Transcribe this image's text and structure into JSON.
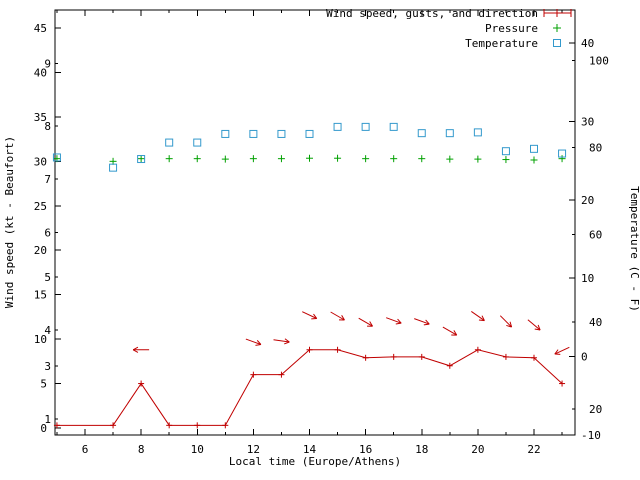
{
  "chart_data": {
    "type": "line",
    "xlabel": "Local time (Europe/Athens)",
    "ylabel_left": "Wind speed (kt - Beaufort)",
    "ylabel_right": "Temperature (C - F)",
    "x_hours_range": [
      5,
      23.4
    ],
    "x_major_ticks": [
      6,
      8,
      10,
      12,
      14,
      16,
      18,
      20,
      22
    ],
    "x_minor_ticks": [
      5,
      7,
      9,
      11,
      13,
      15,
      17,
      19,
      21,
      23
    ],
    "grid": "off",
    "legend_position": "top-right-inside",
    "left_axis": {
      "kt_ticks": [
        0,
        5,
        10,
        15,
        20,
        25,
        30,
        35,
        40,
        45
      ],
      "kt_range": [
        -0.8,
        47
      ],
      "beaufort_labels": [
        {
          "label": "1",
          "kt": 1
        },
        {
          "label": "3",
          "kt": 7
        },
        {
          "label": "4",
          "kt": 11
        },
        {
          "label": "5",
          "kt": 17
        },
        {
          "label": "6",
          "kt": 22
        },
        {
          "label": "7",
          "kt": 28
        },
        {
          "label": "8",
          "kt": 34
        },
        {
          "label": "9",
          "kt": 41
        }
      ]
    },
    "right_axis": {
      "celsius_ticks": [
        -10,
        0,
        10,
        20,
        30,
        40
      ],
      "celsius_range": [
        -10,
        44.2
      ],
      "fahrenheit_ticks": [
        20,
        40,
        60,
        80,
        100
      ]
    },
    "legend": [
      {
        "label": "Wind speed, gusts, and direction",
        "symbol": "errorbar-line",
        "color": "#c00000",
        "label_color": "#8b0000"
      },
      {
        "label": "Pressure",
        "symbol": "plus",
        "color": "#00a000",
        "label_color": "#000000"
      },
      {
        "label": "Temperature",
        "symbol": "open-square",
        "color": "#3399cc",
        "label_color": "#000000"
      }
    ],
    "series": {
      "wind_speed": {
        "name": "Wind speed (kt)",
        "color": "#c00000",
        "points": [
          [
            5,
            0.3
          ],
          [
            7,
            0.3
          ],
          [
            8,
            5
          ],
          [
            9,
            0.3
          ],
          [
            10,
            0.3
          ],
          [
            11,
            0.3
          ],
          [
            12,
            6
          ],
          [
            13,
            6
          ],
          [
            14,
            8.8
          ],
          [
            15,
            8.8
          ],
          [
            16,
            7.9
          ],
          [
            17,
            8
          ],
          [
            18,
            8
          ],
          [
            19,
            7
          ],
          [
            20,
            8.8
          ],
          [
            21,
            8
          ],
          [
            22,
            7.9
          ],
          [
            23,
            5
          ]
        ]
      },
      "wind_gust_arrows": {
        "name": "Gusts and direction",
        "color": "#c00000",
        "points": [
          {
            "t": 8,
            "kt": 8.8,
            "angle_deg": 180
          },
          {
            "t": 12,
            "kt": 9.7,
            "angle_deg": 20
          },
          {
            "t": 13,
            "kt": 9.8,
            "angle_deg": 8
          },
          {
            "t": 14,
            "kt": 12.7,
            "angle_deg": 25
          },
          {
            "t": 15,
            "kt": 12.6,
            "angle_deg": 30
          },
          {
            "t": 16,
            "kt": 11.9,
            "angle_deg": 30
          },
          {
            "t": 17,
            "kt": 12.1,
            "angle_deg": 20
          },
          {
            "t": 18,
            "kt": 12.0,
            "angle_deg": 20
          },
          {
            "t": 19,
            "kt": 10.9,
            "angle_deg": 30
          },
          {
            "t": 20,
            "kt": 12.6,
            "angle_deg": 35
          },
          {
            "t": 21,
            "kt": 12.0,
            "angle_deg": 45
          },
          {
            "t": 22,
            "kt": 11.6,
            "angle_deg": 40
          },
          {
            "t": 23,
            "kt": 8.7,
            "angle_deg": 155
          }
        ]
      },
      "pressure": {
        "name": "Pressure",
        "color": "#00a000",
        "points": [
          [
            5,
            30.3
          ],
          [
            7,
            30.0
          ],
          [
            8,
            30.3
          ],
          [
            9,
            30.3
          ],
          [
            10,
            30.3
          ],
          [
            11,
            30.25
          ],
          [
            12,
            30.3
          ],
          [
            13,
            30.3
          ],
          [
            14,
            30.35
          ],
          [
            15,
            30.35
          ],
          [
            16,
            30.3
          ],
          [
            17,
            30.3
          ],
          [
            18,
            30.3
          ],
          [
            19,
            30.25
          ],
          [
            20,
            30.25
          ],
          [
            21,
            30.2
          ],
          [
            22,
            30.15
          ],
          [
            23,
            30.3
          ]
        ]
      },
      "temperature": {
        "name": "Temperature (C)",
        "color": "#3399cc",
        "points": [
          [
            5,
            25.4
          ],
          [
            7,
            24.1
          ],
          [
            8,
            25.2
          ],
          [
            9,
            27.3
          ],
          [
            10,
            27.3
          ],
          [
            11,
            28.4
          ],
          [
            12,
            28.4
          ],
          [
            13,
            28.4
          ],
          [
            14,
            28.4
          ],
          [
            15,
            29.3
          ],
          [
            16,
            29.3
          ],
          [
            17,
            29.3
          ],
          [
            18,
            28.5
          ],
          [
            19,
            28.5
          ],
          [
            20,
            28.6
          ],
          [
            21,
            26.2
          ],
          [
            22,
            26.5
          ],
          [
            23,
            25.9
          ]
        ]
      }
    }
  }
}
